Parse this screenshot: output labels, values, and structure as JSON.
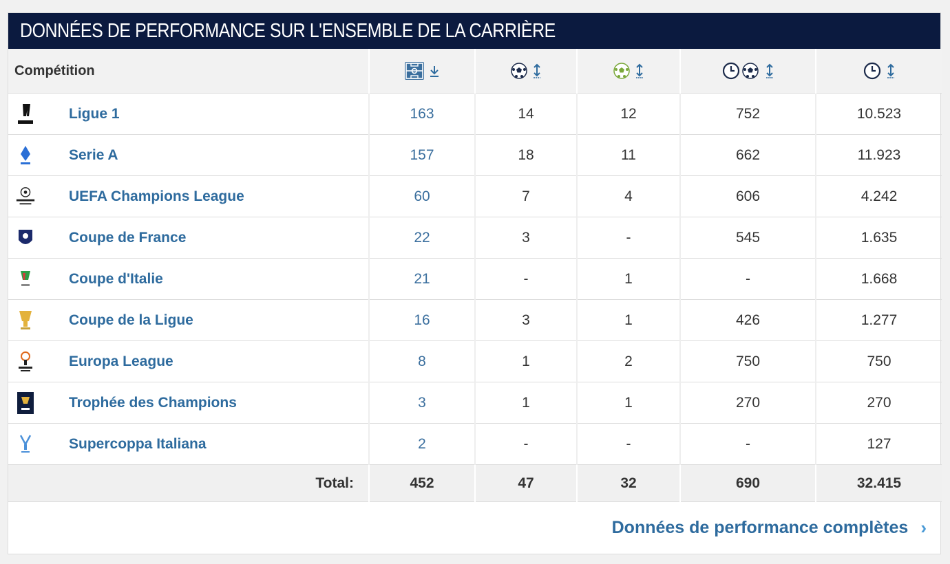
{
  "header": {
    "title": "DONNÉES DE PERFORMANCE SUR L'ENSEMBLE DE LA CARRIÈRE"
  },
  "columns": {
    "competition": "Compétition",
    "icons": [
      "pitch-icon",
      "ball-icon",
      "assist-ball-icon",
      "clock-ball-icon",
      "clock-icon"
    ]
  },
  "rows": [
    {
      "name": "Ligue 1",
      "logo": "ligue1-logo",
      "apps": "163",
      "goals": "14",
      "assists": "12",
      "min_per_goal": "752",
      "minutes": "10.523"
    },
    {
      "name": "Serie A",
      "logo": "seriea-logo",
      "apps": "157",
      "goals": "18",
      "assists": "11",
      "min_per_goal": "662",
      "minutes": "11.923"
    },
    {
      "name": "UEFA Champions League",
      "logo": "ucl-logo",
      "apps": "60",
      "goals": "7",
      "assists": "4",
      "min_per_goal": "606",
      "minutes": "4.242"
    },
    {
      "name": "Coupe de France",
      "logo": "coupe-de-france-logo",
      "apps": "22",
      "goals": "3",
      "assists": "-",
      "min_per_goal": "545",
      "minutes": "1.635"
    },
    {
      "name": "Coupe d'Italie",
      "logo": "coppa-italia-logo",
      "apps": "21",
      "goals": "-",
      "assists": "1",
      "min_per_goal": "-",
      "minutes": "1.668"
    },
    {
      "name": "Coupe de la Ligue",
      "logo": "coupe-de-la-ligue-logo",
      "apps": "16",
      "goals": "3",
      "assists": "1",
      "min_per_goal": "426",
      "minutes": "1.277"
    },
    {
      "name": "Europa League",
      "logo": "europa-league-logo",
      "apps": "8",
      "goals": "1",
      "assists": "2",
      "min_per_goal": "750",
      "minutes": "750"
    },
    {
      "name": "Trophée des Champions",
      "logo": "trophee-des-champions-logo",
      "apps": "3",
      "goals": "1",
      "assists": "1",
      "min_per_goal": "270",
      "minutes": "270"
    },
    {
      "name": "Supercoppa Italiana",
      "logo": "supercoppa-logo",
      "apps": "2",
      "goals": "-",
      "assists": "-",
      "min_per_goal": "-",
      "minutes": "127"
    }
  ],
  "totals": {
    "label": "Total:",
    "apps": "452",
    "goals": "47",
    "assists": "32",
    "min_per_goal": "690",
    "minutes": "32.415"
  },
  "footer": {
    "link": "Données de performance complètes"
  },
  "colors": {
    "header_bg": "#0b1a3f",
    "link": "#2e6b9e",
    "chevron": "#4a9ad6"
  }
}
